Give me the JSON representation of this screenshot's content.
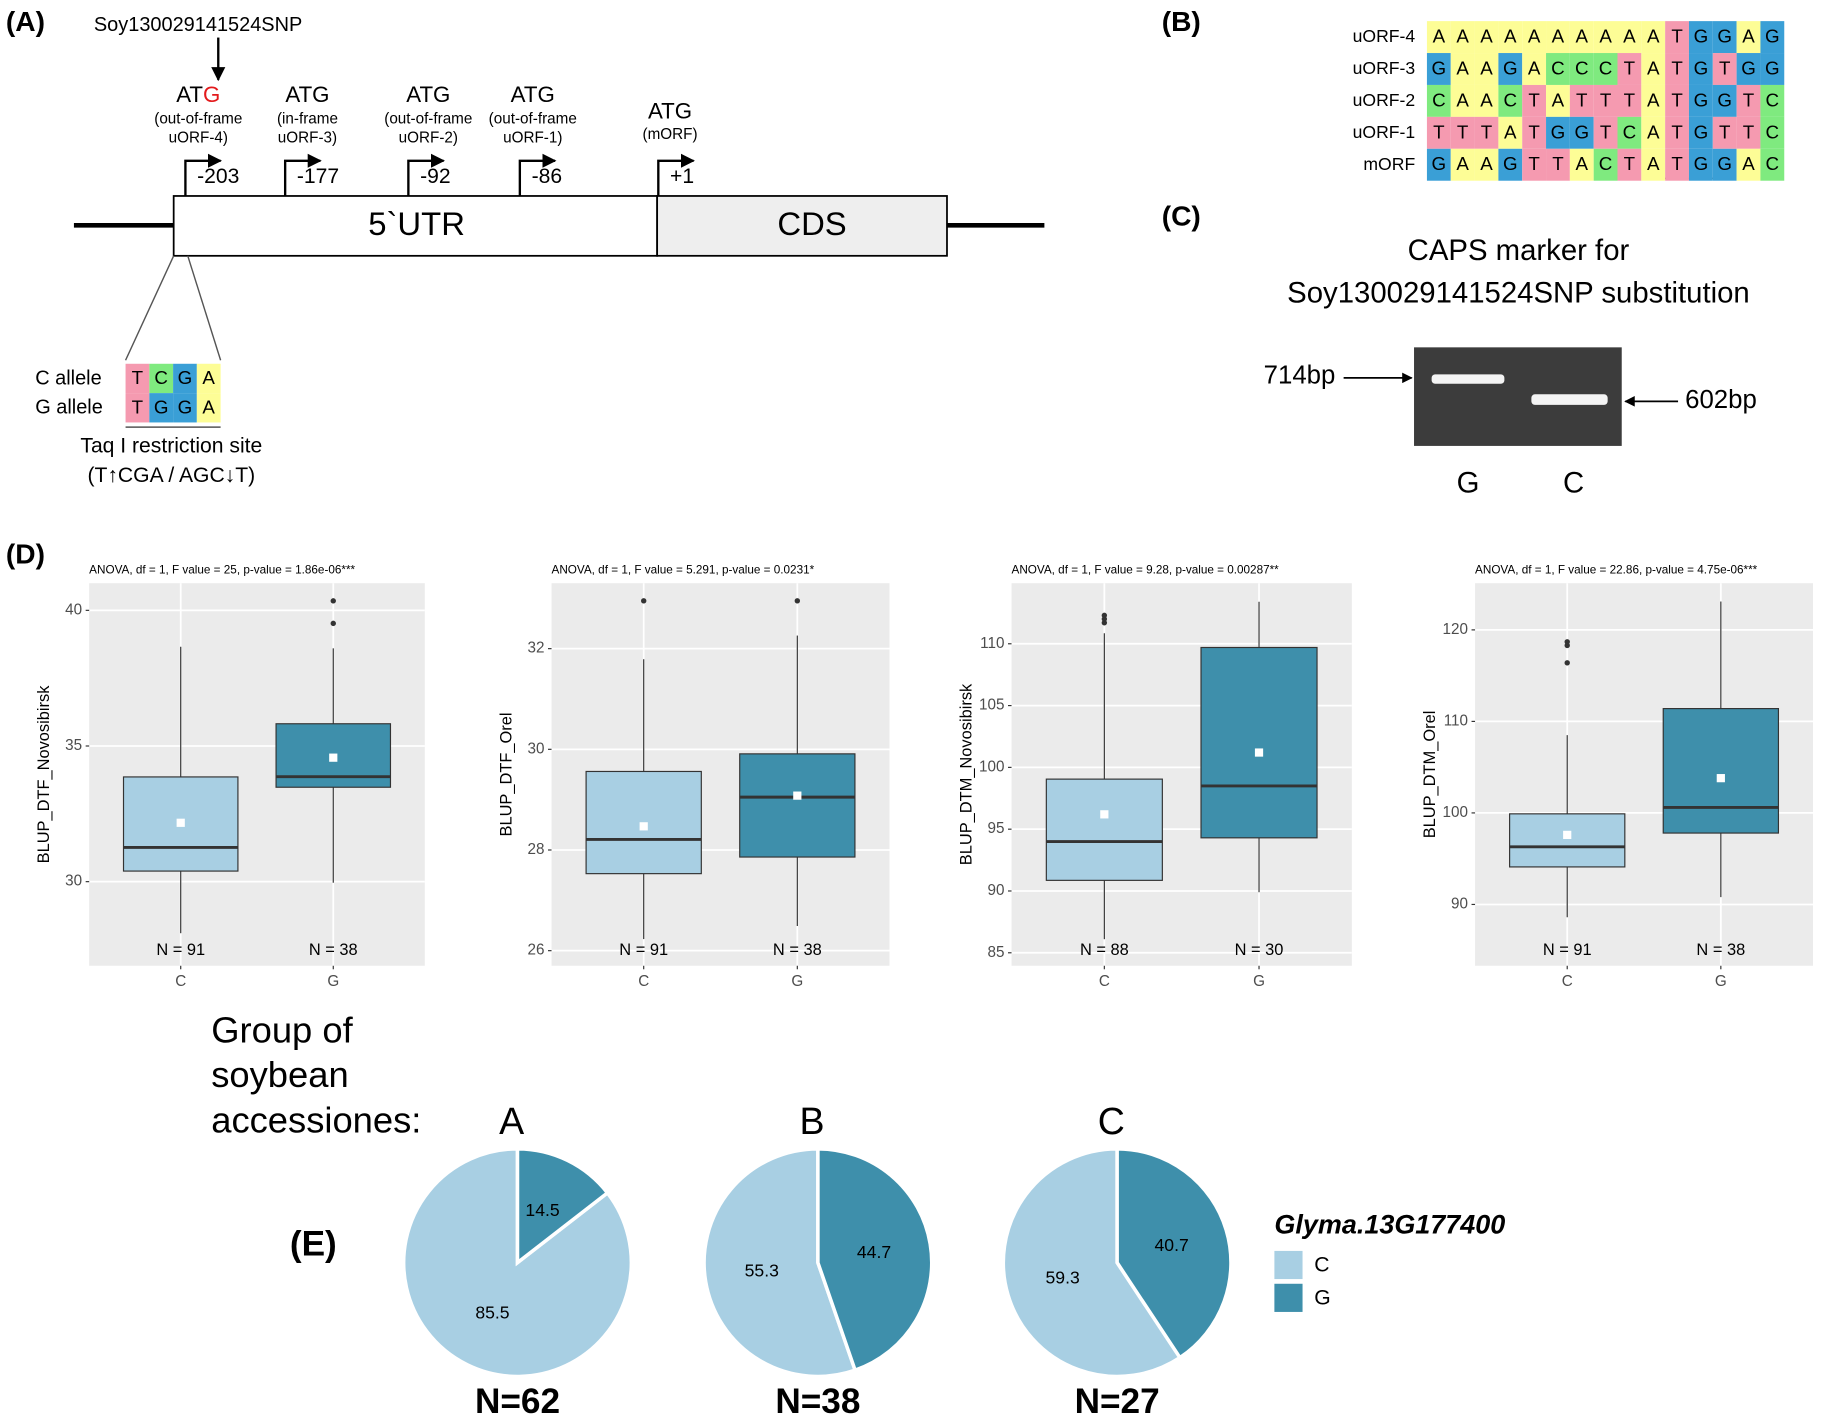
{
  "base_colors": {
    "A": "#fdfd96",
    "C": "#7fea7f",
    "G": "#3a9fd6",
    "T": "#f59ab0"
  },
  "panel_a": {
    "label": "(A)",
    "snp": "Soy130029141524SNP",
    "atg": [
      {
        "codon": "AT",
        "snp_base": "G",
        "note": [
          "(out-of-frame",
          "uORF-4)"
        ],
        "position": "-203"
      },
      {
        "codon": "ATG",
        "note": [
          "(in-frame",
          "uORF-3)"
        ],
        "position": "-177"
      },
      {
        "codon": "ATG",
        "note": [
          "(out-of-frame",
          "uORF-2)"
        ],
        "position": "-92"
      },
      {
        "codon": "ATG",
        "note": [
          "(out-of-frame",
          "uORF-1)"
        ],
        "position": "-86"
      },
      {
        "codon": "ATG",
        "note": [
          "(mORF)"
        ],
        "position": "+1"
      }
    ],
    "utr": "5`UTR",
    "cds": "CDS",
    "alleles": [
      {
        "name": "C allele",
        "sequence": "TCGA"
      },
      {
        "name": "G allele",
        "sequence": "TGGA"
      }
    ],
    "site": "Taq I restriction site",
    "site_pattern": "(T↑CGA / AGC↓T)"
  },
  "panel_b": {
    "label": "(B)",
    "rows": [
      {
        "name": "uORF-4",
        "sequence": "AAAAAAAAAATGGAG"
      },
      {
        "name": "uORF-3",
        "sequence": "GAAGACCCTATGTGG"
      },
      {
        "name": "uORF-2",
        "sequence": "CAACTATTTATGGTC"
      },
      {
        "name": "uORF-1",
        "sequence": "TTTATGGTCATGTTC"
      },
      {
        "name": "mORF",
        "sequence": "GAAGTTACTATGGAC"
      }
    ]
  },
  "panel_c": {
    "label": "(C)",
    "title": [
      "CAPS marker for",
      "Soy130029141524SNP substitution"
    ],
    "bands": [
      "714bp",
      "602bp"
    ],
    "lanes": [
      "G",
      "C"
    ]
  },
  "panel_d": {
    "label": "(D)"
  },
  "panel_e": {
    "label": "(E)",
    "heading": [
      "Group of",
      "soybean",
      "accessiones:"
    ],
    "legend_title": "Glyma.13G177400"
  },
  "chart_data": [
    {
      "type": "box",
      "title": "ANOVA, df = 1, F value = 25, p-value = 1.86e-06***",
      "y_label": "BLUP_DTF_Novosibirsk",
      "categories": [
        "C",
        "G"
      ],
      "n_labels": [
        "N = 91",
        "N = 38"
      ],
      "colors": [
        "#a8cfe3",
        "#3e8fab"
      ],
      "boxes": [
        {
          "whisker_low": 28.1,
          "q1": 30.39,
          "median": 31.26,
          "q3": 33.86,
          "whisker_high": 38.66,
          "mean": 32.17,
          "outliers": []
        },
        {
          "whisker_low": 29.96,
          "q1": 33.48,
          "median": 33.87,
          "q3": 35.82,
          "whisker_high": 38.6,
          "mean": 34.57,
          "outliers": [
            39.52,
            40.35
          ]
        }
      ],
      "ylim": [
        26.9,
        41.0
      ],
      "yticks": [
        30,
        35,
        40
      ],
      "grid": true
    },
    {
      "type": "box",
      "title": "ANOVA, df = 1, F value = 5.291, p-value = 0.0231*",
      "y_label": "BLUP_DTF_Orel",
      "categories": [
        "C",
        "G"
      ],
      "n_labels": [
        "N = 91",
        "N = 38"
      ],
      "colors": [
        "#a8cfe3",
        "#3e8fab"
      ],
      "boxes": [
        {
          "whisker_low": 26.23,
          "q1": 27.53,
          "median": 28.21,
          "q3": 29.56,
          "whisker_high": 31.79,
          "mean": 28.47,
          "outliers": [
            32.95
          ]
        },
        {
          "whisker_low": 26.49,
          "q1": 27.86,
          "median": 29.05,
          "q3": 29.91,
          "whisker_high": 32.26,
          "mean": 29.08,
          "outliers": [
            32.95
          ]
        }
      ],
      "ylim": [
        25.7,
        33.3
      ],
      "yticks": [
        26,
        28,
        30,
        32
      ],
      "grid": true
    },
    {
      "type": "box",
      "title": "ANOVA, df = 1, F value = 9.28, p-value = 0.00287**",
      "y_label": "BLUP_DTM_Novosibirsk",
      "categories": [
        "C",
        "G"
      ],
      "n_labels": [
        "N = 88",
        "N = 30"
      ],
      "colors": [
        "#a8cfe3",
        "#3e8fab"
      ],
      "boxes": [
        {
          "whisker_low": 86.1,
          "q1": 90.86,
          "median": 94.0,
          "q3": 99.05,
          "whisker_high": 110.85,
          "mean": 96.2,
          "outliers": [
            111.7,
            112.0,
            112.3
          ]
        },
        {
          "whisker_low": 89.9,
          "q1": 94.3,
          "median": 98.5,
          "q3": 109.7,
          "whisker_high": 113.4,
          "mean": 101.2,
          "outliers": []
        }
      ],
      "ylim": [
        83.95,
        114.9
      ],
      "yticks": [
        85,
        90,
        95,
        100,
        105,
        110
      ],
      "grid": true
    },
    {
      "type": "box",
      "title": "ANOVA, df = 1, F value = 22.86, p-value = 4.75e-06***",
      "y_label": "BLUP_DTM_Orel",
      "categories": [
        "C",
        "G"
      ],
      "n_labels": [
        "N = 91",
        "N = 38"
      ],
      "colors": [
        "#a8cfe3",
        "#3e8fab"
      ],
      "boxes": [
        {
          "whisker_low": 88.6,
          "q1": 94.1,
          "median": 96.3,
          "q3": 99.9,
          "whisker_high": 108.5,
          "mean": 97.6,
          "outliers": [
            116.4,
            118.3,
            118.7
          ]
        },
        {
          "whisker_low": 90.8,
          "q1": 97.8,
          "median": 100.6,
          "q3": 111.4,
          "whisker_high": 123.1,
          "mean": 103.8,
          "outliers": []
        }
      ],
      "ylim": [
        83.3,
        125.1
      ],
      "yticks": [
        90,
        100,
        110,
        120
      ],
      "grid": true
    },
    {
      "type": "pie",
      "title": "A",
      "subtitle": "N=62",
      "categories": [
        "C",
        "G"
      ],
      "values": [
        85.5,
        14.5
      ],
      "colors": [
        "#a8cfe3",
        "#3e8fab"
      ],
      "direction": "counterclockwise"
    },
    {
      "type": "pie",
      "title": "B",
      "subtitle": "N=38",
      "categories": [
        "C",
        "G"
      ],
      "values": [
        55.3,
        44.7
      ],
      "colors": [
        "#a8cfe3",
        "#3e8fab"
      ],
      "direction": "counterclockwise"
    },
    {
      "type": "pie",
      "title": "C",
      "subtitle": "N=27",
      "categories": [
        "C",
        "G"
      ],
      "values": [
        59.3,
        40.7
      ],
      "colors": [
        "#a8cfe3",
        "#3e8fab"
      ],
      "direction": "counterclockwise"
    }
  ]
}
